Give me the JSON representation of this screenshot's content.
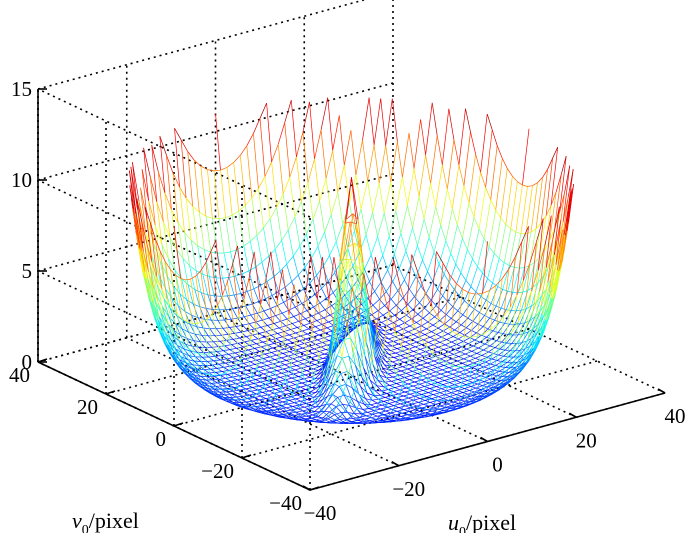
{
  "chart_data": {
    "type": "surface3d",
    "title": "",
    "xlabel": {
      "main": "u",
      "sub": "0",
      "unit": "/pixel"
    },
    "ylabel": {
      "main": "v",
      "sub": "0",
      "unit": "/pixel"
    },
    "zlabel": "",
    "xlim": [
      -40,
      40
    ],
    "ylim": [
      -40,
      40
    ],
    "zlim": [
      0,
      15
    ],
    "xticks": [
      -40,
      -20,
      0,
      20,
      40
    ],
    "yticks": [
      -40,
      -20,
      0,
      20,
      40
    ],
    "zticks": [
      0,
      5,
      10,
      15
    ],
    "xtick_labels": [
      "−40",
      "−20",
      "0",
      "20",
      "40"
    ],
    "ytick_labels": [
      "−40",
      "−20",
      "0",
      "20",
      "40"
    ],
    "ztick_labels": [
      "0",
      "5",
      "10",
      "15"
    ],
    "grid": true,
    "colormap": "jet",
    "surface": {
      "description_values": "mesh z = f(u0, v0) over u0, v0 in [-40, 40]",
      "corner_peak_z": 11,
      "center_ridge_peak_z": 11,
      "min_z": 0
    }
  }
}
